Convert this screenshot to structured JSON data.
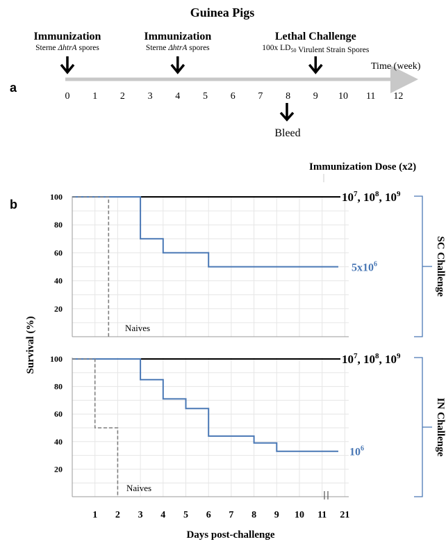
{
  "figure_title": "Guinea Pigs",
  "panel_a_label": "a",
  "panel_b_label": "b",
  "timeline": {
    "axis_label": "Time (week)",
    "ticks": [
      "0",
      "1",
      "2",
      "3",
      "4",
      "5",
      "6",
      "7",
      "8",
      "9",
      "10",
      "11",
      "12"
    ],
    "events": [
      {
        "title": "Immunization",
        "subtitle_pre": "Sterne ",
        "subtitle_italic": "ΔhtrA",
        "subtitle_post": " spores",
        "week": 0
      },
      {
        "title": "Immunization",
        "subtitle_pre": "Sterne ",
        "subtitle_italic": "ΔhtrA",
        "subtitle_post": " spores",
        "week": 4
      },
      {
        "title": "Lethal Challenge",
        "subtitle_pre": "100x LD",
        "subtitle_sub": "50",
        "subtitle_post": "  Virulent Strain Spores",
        "week": 9
      }
    ],
    "bleed": {
      "label": "Bleed",
      "week": 8
    }
  },
  "dose_header": "Immunization Dose (x2)",
  "y_axis_label": "Survival (%)",
  "x_axis_label": "Days post-challenge",
  "naives_label": "Naives",
  "colors": {
    "protected": "#000000",
    "low_dose": "#4a78b5",
    "naive": "#7f7f7f",
    "bracket": "#4a78b5",
    "grid": "#e6e6e6",
    "timeline": "#c8c8c8"
  },
  "chart_data": [
    {
      "type": "line",
      "panel": "SC Challenge",
      "x_categories": [
        "1",
        "2",
        "3",
        "4",
        "5",
        "6",
        "7",
        "8",
        "9",
        "10",
        "11",
        "21"
      ],
      "ylim": [
        0,
        100
      ],
      "yticks": [
        "20",
        "40",
        "60",
        "80",
        "100"
      ],
      "series": [
        {
          "name": "10^7, 10^8, 10^9",
          "label_base": [
            "10",
            "10",
            "10"
          ],
          "label_exp": [
            "7",
            "8",
            "9"
          ],
          "points": [
            [
              0,
              100
            ],
            [
              21,
              100
            ]
          ]
        },
        {
          "name": "5x10^6",
          "label_base": "5x10",
          "label_exp": "6",
          "points": [
            [
              0,
              100
            ],
            [
              3,
              100
            ],
            [
              3,
              70
            ],
            [
              4,
              70
            ],
            [
              4,
              60
            ],
            [
              6,
              60
            ],
            [
              6,
              50
            ],
            [
              21,
              50
            ]
          ]
        },
        {
          "name": "Naives",
          "points": [
            [
              0,
              100
            ],
            [
              1.6,
              100
            ],
            [
              1.6,
              0
            ]
          ]
        }
      ],
      "bracket_label": "SC Challenge"
    },
    {
      "type": "line",
      "panel": "IN Challenge",
      "x_categories": [
        "1",
        "2",
        "3",
        "4",
        "5",
        "6",
        "7",
        "8",
        "9",
        "10",
        "11",
        "21"
      ],
      "ylim": [
        0,
        100
      ],
      "yticks": [
        "20",
        "40",
        "60",
        "80",
        "100"
      ],
      "series": [
        {
          "name": "10^7, 10^8, 10^9",
          "label_base": [
            "10",
            "10",
            "10"
          ],
          "label_exp": [
            "7",
            "8",
            "9"
          ],
          "points": [
            [
              0,
              100
            ],
            [
              21,
              100
            ]
          ]
        },
        {
          "name": "10^6",
          "label_base": "10",
          "label_exp": "6",
          "points": [
            [
              0,
              100
            ],
            [
              3,
              100
            ],
            [
              3,
              85
            ],
            [
              4,
              85
            ],
            [
              4,
              71
            ],
            [
              5,
              71
            ],
            [
              5,
              64
            ],
            [
              6,
              64
            ],
            [
              6,
              44
            ],
            [
              8,
              44
            ],
            [
              8,
              39
            ],
            [
              9,
              39
            ],
            [
              9,
              33
            ],
            [
              21,
              33
            ]
          ]
        },
        {
          "name": "Naives",
          "points": [
            [
              0,
              100
            ],
            [
              1,
              100
            ],
            [
              1,
              50
            ],
            [
              2,
              50
            ],
            [
              2,
              0
            ]
          ]
        }
      ],
      "bracket_label": "IN Challenge"
    }
  ]
}
